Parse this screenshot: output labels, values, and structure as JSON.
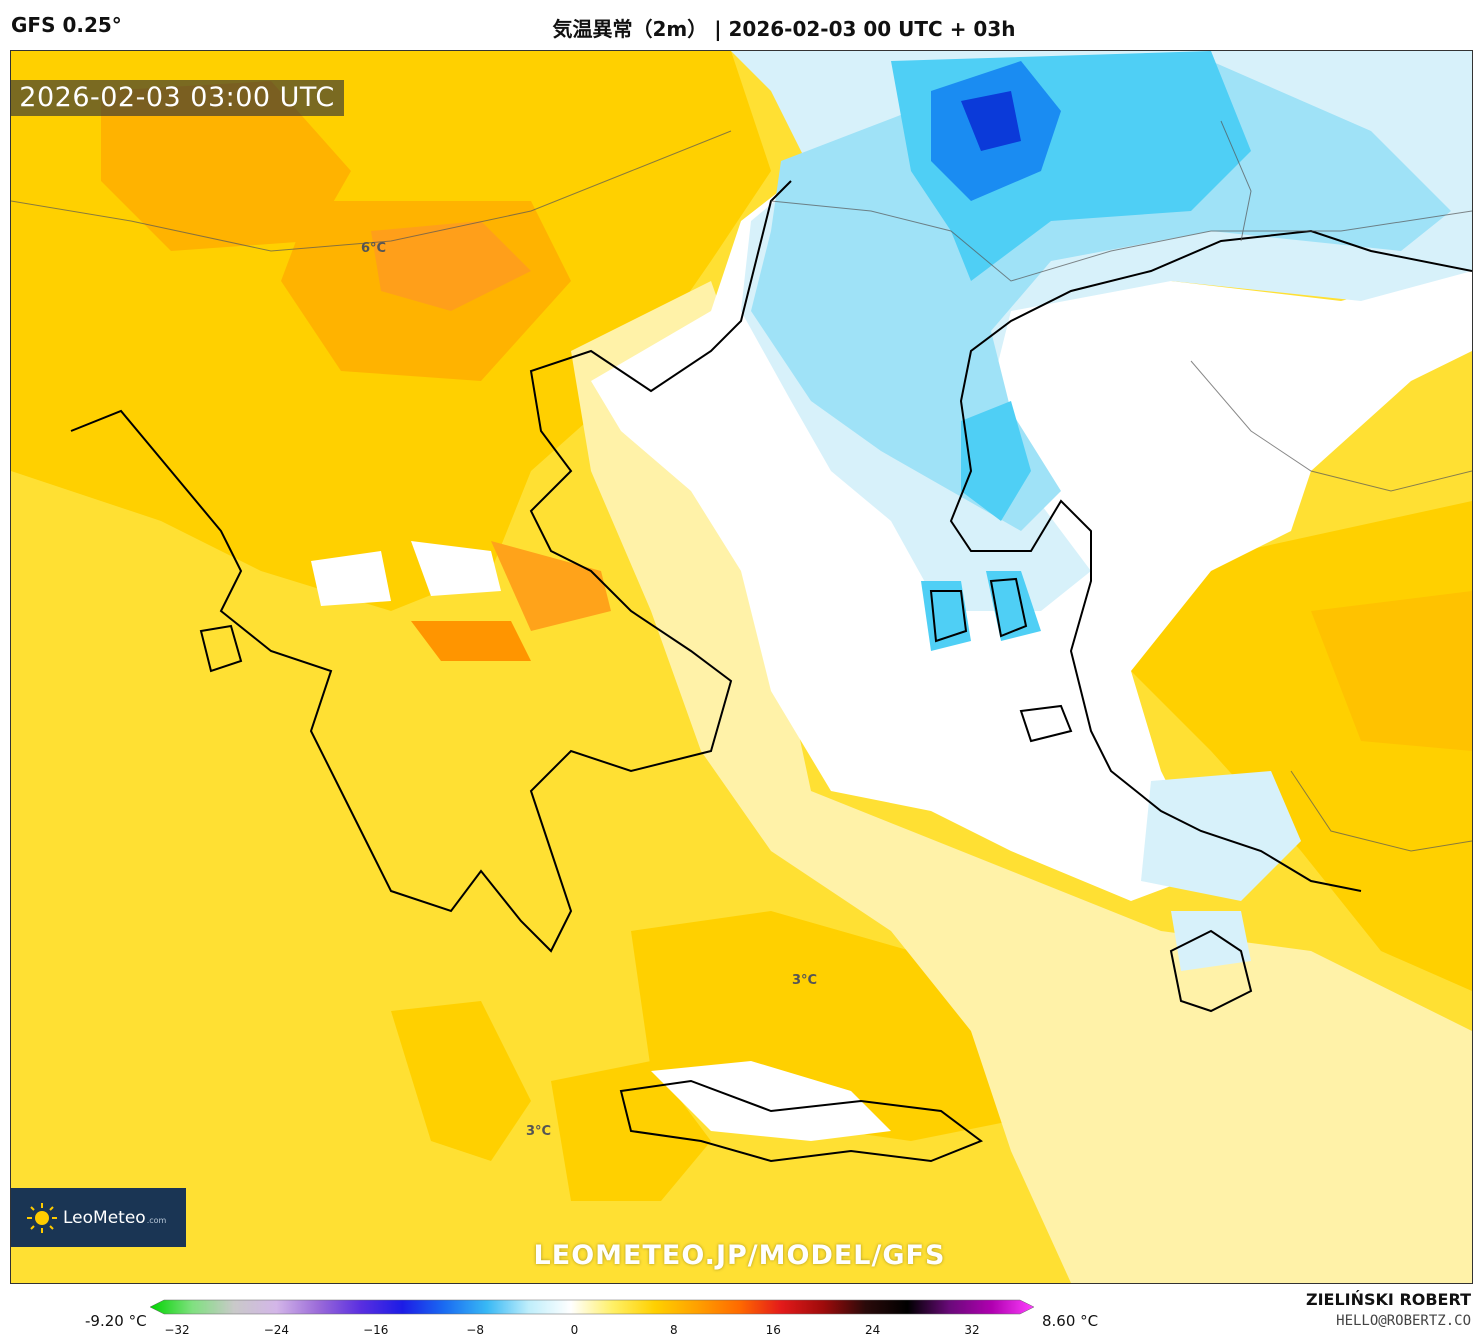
{
  "header": {
    "model": "GFS 0.25°",
    "title": "気温異常（2m） | 2026-02-03 00 UTC + 03h"
  },
  "map": {
    "timestamp": "2026-02-03 03:00 UTC",
    "labels": [
      "6°C",
      "3°C",
      "3°C"
    ],
    "watermark": "LEOMETEO.JP/MODEL/GFS",
    "colors": {
      "warm_yellow": "#ffe033",
      "warm_gold": "#ffd000",
      "warm_orange": "#ffb300",
      "warm_dark_orange": "#ff8c00",
      "neutral_white": "#ffffff",
      "pale_yellow": "#fff2a8",
      "pale_blue": "#d7f1fa",
      "light_blue": "#9fe2f7",
      "cyan": "#4fcff5",
      "blue": "#1a8cf2",
      "dark_blue": "#0b3ad9"
    }
  },
  "logo": {
    "name": "LeoMeteo",
    "sub": ".com",
    "icon": "sun-icon"
  },
  "scale": {
    "min_label": "-9.20 °C",
    "max_label": "8.60 °C",
    "ticks": [
      "−32",
      "−24",
      "−16",
      "−8",
      "0",
      "8",
      "16",
      "24",
      "32"
    ],
    "gradient": [
      "#00d400",
      "#7fe07f",
      "#c9c9c9",
      "#d3b6e8",
      "#9b6bd9",
      "#5a2fe0",
      "#1c1ce6",
      "#1a6cf2",
      "#38b8f5",
      "#bfeefb",
      "#ffffff",
      "#fff066",
      "#ffd000",
      "#ffa000",
      "#ff6a00",
      "#e31a1a",
      "#9e0b0b",
      "#2a0a0a",
      "#000000",
      "#6a0a7a",
      "#b000b0",
      "#ff40ff"
    ]
  },
  "credits": {
    "author": "ZIELIŃSKI ROBERT",
    "email": "HELLO@ROBERTZ.CO"
  }
}
